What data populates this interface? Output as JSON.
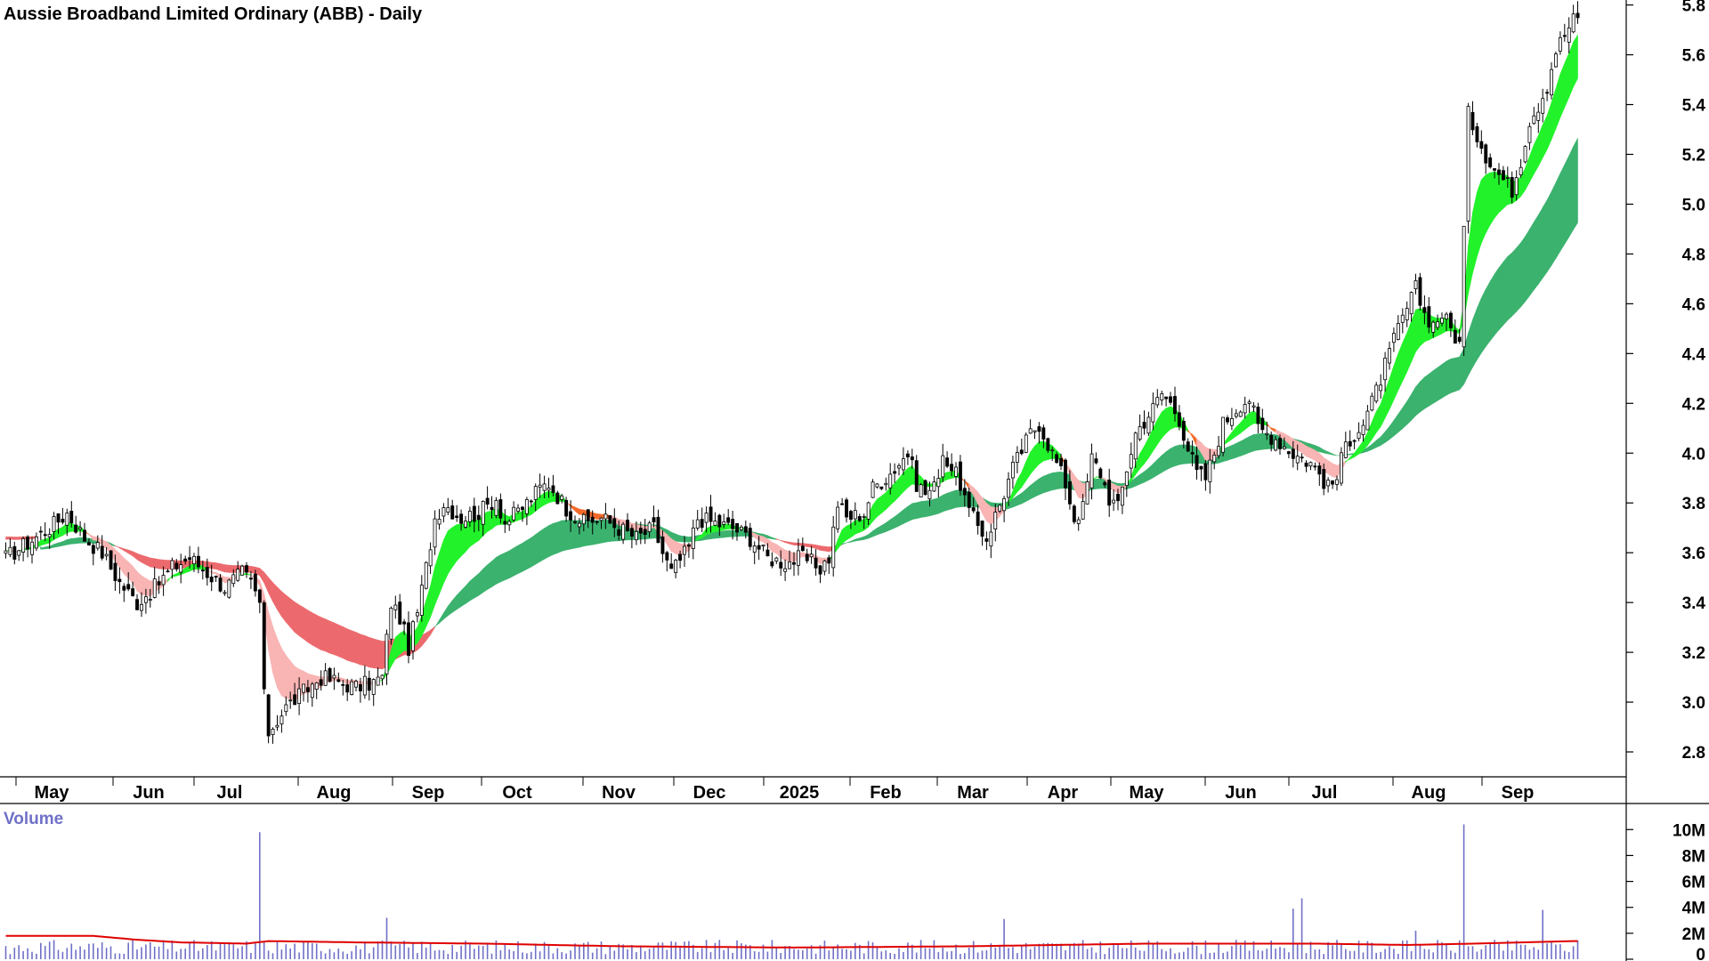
{
  "chart_data": {
    "type": "candlestick",
    "title": "Aussie Broadband Limited Ordinary (ABB) - Daily",
    "price_axis": {
      "ylim": [
        2.7,
        5.82
      ],
      "ticks": [
        "5.8",
        "5.6",
        "5.4",
        "5.2",
        "5.0",
        "4.8",
        "4.6",
        "4.4",
        "4.2",
        "4.0",
        "3.8",
        "3.6",
        "3.4",
        "3.2",
        "3.0",
        "2.8"
      ]
    },
    "x_axis": {
      "labels": [
        "May",
        "Jun",
        "Jul",
        "Aug",
        "Sep",
        "Oct",
        "Nov",
        "Dec",
        "2025",
        "Feb",
        "Mar",
        "Apr",
        "May",
        "Jun",
        "Jul",
        "Aug",
        "Sep"
      ]
    },
    "price_path": [
      [
        0,
        3.58
      ],
      [
        10,
        3.7
      ],
      [
        14,
        3.76
      ],
      [
        18,
        3.66
      ],
      [
        22,
        3.6
      ],
      [
        26,
        3.48
      ],
      [
        30,
        3.4
      ],
      [
        34,
        3.46
      ],
      [
        38,
        3.54
      ],
      [
        42,
        3.58
      ],
      [
        46,
        3.52
      ],
      [
        50,
        3.46
      ],
      [
        54,
        3.52
      ],
      [
        56,
        3.48
      ],
      [
        58,
        3.4
      ],
      [
        59,
        3.02
      ],
      [
        60,
        2.88
      ],
      [
        64,
        2.98
      ],
      [
        68,
        3.04
      ],
      [
        72,
        3.1
      ],
      [
        76,
        3.08
      ],
      [
        80,
        3.06
      ],
      [
        84,
        3.08
      ],
      [
        86,
        3.1
      ],
      [
        88,
        3.4
      ],
      [
        90,
        3.34
      ],
      [
        92,
        3.22
      ],
      [
        94,
        3.36
      ],
      [
        96,
        3.54
      ],
      [
        98,
        3.74
      ],
      [
        100,
        3.8
      ],
      [
        104,
        3.74
      ],
      [
        108,
        3.76
      ],
      [
        112,
        3.82
      ],
      [
        114,
        3.72
      ],
      [
        118,
        3.78
      ],
      [
        122,
        3.86
      ],
      [
        124,
        3.88
      ],
      [
        128,
        3.78
      ],
      [
        132,
        3.72
      ],
      [
        136,
        3.74
      ],
      [
        140,
        3.7
      ],
      [
        144,
        3.66
      ],
      [
        148,
        3.7
      ],
      [
        150,
        3.6
      ],
      [
        152,
        3.52
      ],
      [
        156,
        3.62
      ],
      [
        158,
        3.74
      ],
      [
        162,
        3.72
      ],
      [
        166,
        3.7
      ],
      [
        170,
        3.66
      ],
      [
        174,
        3.58
      ],
      [
        178,
        3.56
      ],
      [
        182,
        3.58
      ],
      [
        186,
        3.54
      ],
      [
        188,
        3.58
      ],
      [
        190,
        3.8
      ],
      [
        192,
        3.74
      ],
      [
        196,
        3.76
      ],
      [
        198,
        3.86
      ],
      [
        202,
        3.92
      ],
      [
        206,
        4.0
      ],
      [
        208,
        3.88
      ],
      [
        210,
        3.84
      ],
      [
        212,
        3.86
      ],
      [
        214,
        4.0
      ],
      [
        216,
        3.94
      ],
      [
        218,
        3.88
      ],
      [
        220,
        3.76
      ],
      [
        224,
        3.66
      ],
      [
        228,
        3.84
      ],
      [
        230,
        3.94
      ],
      [
        234,
        4.08
      ],
      [
        236,
        4.12
      ],
      [
        238,
        4.04
      ],
      [
        240,
        3.96
      ],
      [
        242,
        3.88
      ],
      [
        244,
        3.74
      ],
      [
        246,
        3.78
      ],
      [
        248,
        3.98
      ],
      [
        250,
        3.92
      ],
      [
        252,
        3.82
      ],
      [
        254,
        3.78
      ],
      [
        256,
        3.94
      ],
      [
        258,
        4.08
      ],
      [
        262,
        4.18
      ],
      [
        264,
        4.24
      ],
      [
        266,
        4.2
      ],
      [
        268,
        4.14
      ],
      [
        270,
        4.02
      ],
      [
        272,
        3.92
      ],
      [
        274,
        3.9
      ],
      [
        276,
        4.0
      ],
      [
        278,
        4.12
      ],
      [
        282,
        4.2
      ],
      [
        284,
        4.22
      ],
      [
        286,
        4.1
      ],
      [
        290,
        4.06
      ],
      [
        294,
        4.0
      ],
      [
        298,
        3.96
      ],
      [
        300,
        3.92
      ],
      [
        302,
        3.86
      ],
      [
        304,
        3.9
      ],
      [
        306,
        4.04
      ],
      [
        308,
        4.08
      ],
      [
        310,
        4.12
      ],
      [
        312,
        4.2
      ],
      [
        314,
        4.3
      ],
      [
        316,
        4.4
      ],
      [
        318,
        4.5
      ],
      [
        320,
        4.58
      ],
      [
        322,
        4.66
      ],
      [
        324,
        4.56
      ],
      [
        326,
        4.52
      ],
      [
        328,
        4.56
      ],
      [
        330,
        4.5
      ],
      [
        332,
        4.44
      ],
      [
        334,
        5.36
      ],
      [
        336,
        5.28
      ],
      [
        338,
        5.2
      ],
      [
        340,
        5.14
      ],
      [
        342,
        5.1
      ],
      [
        344,
        5.06
      ],
      [
        346,
        5.18
      ],
      [
        348,
        5.34
      ],
      [
        350,
        5.4
      ],
      [
        352,
        5.48
      ],
      [
        354,
        5.62
      ],
      [
        356,
        5.68
      ],
      [
        358,
        5.74
      ]
    ],
    "spike_bars": [
      {
        "x": 58,
        "value": 9.8
      },
      {
        "x": 87,
        "value": 3.2
      },
      {
        "x": 228,
        "value": 3.1
      },
      {
        "x": 294,
        "value": 3.9
      },
      {
        "x": 296,
        "value": 4.7
      },
      {
        "x": 333,
        "value": 10.4
      },
      {
        "x": 351,
        "value": 3.8
      },
      {
        "x": 322,
        "value": 2.2
      }
    ],
    "volume_axis": {
      "title": "Volume",
      "ylim": [
        0,
        10.5
      ],
      "ticks": [
        {
          "v": 10,
          "label": "10M"
        },
        {
          "v": 8,
          "label": "8M"
        },
        {
          "v": 6,
          "label": "6M"
        },
        {
          "v": 4,
          "label": "4M"
        },
        {
          "v": 2,
          "label": "2M"
        },
        {
          "v": 0,
          "label": "0"
        }
      ]
    },
    "volume_ma_path": [
      [
        0,
        1.8
      ],
      [
        20,
        1.8
      ],
      [
        30,
        1.5
      ],
      [
        40,
        1.3
      ],
      [
        55,
        1.2
      ],
      [
        60,
        1.4
      ],
      [
        80,
        1.3
      ],
      [
        110,
        1.2
      ],
      [
        140,
        1.0
      ],
      [
        180,
        0.9
      ],
      [
        220,
        1.0
      ],
      [
        260,
        1.2
      ],
      [
        300,
        1.2
      ],
      [
        320,
        1.1
      ],
      [
        335,
        1.2
      ],
      [
        358,
        1.4
      ]
    ],
    "colors": {
      "bull": "#ffffff",
      "bear": "#000000",
      "short_up": "#22f22a",
      "short_down": "#f26a2a",
      "short_weak": "#f9b4b4",
      "long_up": "#3bb26e",
      "long_down": "#ec6a6e",
      "volume": "#7070c8",
      "volume_ma": "#e00000"
    }
  }
}
